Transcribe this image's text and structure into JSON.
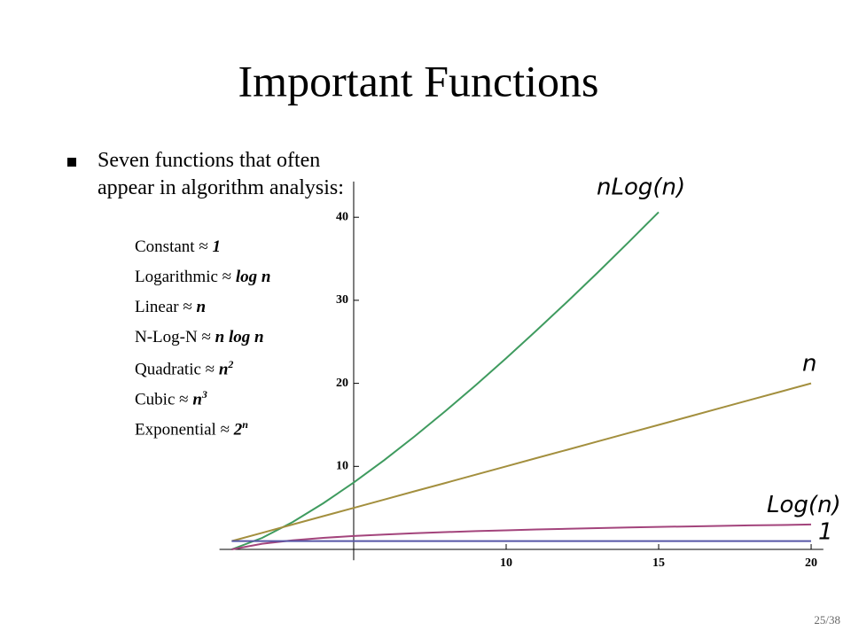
{
  "slide": {
    "title": "Important Functions",
    "bullet": "Seven functions that often appear in algorithm analysis:",
    "items": [
      {
        "name": "Constant",
        "symbol": "≈",
        "formula": "1"
      },
      {
        "name": "Logarithmic",
        "symbol": "≈",
        "formula": "log n"
      },
      {
        "name": "Linear",
        "symbol": "≈",
        "formula": "n"
      },
      {
        "name": "N-Log-N",
        "symbol": "≈",
        "formula": "n log n"
      },
      {
        "name": "Quadratic",
        "symbol": "≈",
        "formula": "n",
        "sup": "2"
      },
      {
        "name": "Cubic",
        "symbol": "≈",
        "formula": "n",
        "sup": "3"
      },
      {
        "name": "Exponential",
        "symbol": "≈",
        "formula": "2",
        "sup": "n"
      }
    ],
    "page": "25/38"
  },
  "chart_data": {
    "type": "line",
    "x": [
      1,
      2,
      3,
      4,
      5,
      6,
      7,
      8,
      9,
      10,
      11,
      12,
      13,
      14,
      15,
      16,
      17,
      18,
      19,
      20
    ],
    "series": [
      {
        "name": "nLog(n)",
        "color": "#3f9b5f",
        "values": [
          0,
          1.39,
          3.3,
          5.55,
          8.05,
          10.75,
          13.62,
          16.64,
          19.78,
          23.03,
          26.38,
          29.82,
          33.34,
          36.95,
          40.62,
          null,
          null,
          null,
          null,
          null
        ]
      },
      {
        "name": "n",
        "color": "#a38f3e",
        "values": [
          1,
          2,
          3,
          4,
          5,
          6,
          7,
          8,
          9,
          10,
          11,
          12,
          13,
          14,
          15,
          16,
          17,
          18,
          19,
          20
        ]
      },
      {
        "name": "Log(n)",
        "color": "#a3447c",
        "values": [
          0,
          0.69,
          1.1,
          1.39,
          1.61,
          1.79,
          1.95,
          2.08,
          2.2,
          2.3,
          2.4,
          2.48,
          2.56,
          2.64,
          2.71,
          2.77,
          2.83,
          2.89,
          2.94,
          3.0
        ]
      },
      {
        "name": "1",
        "color": "#5656a6",
        "values": [
          1,
          1,
          1,
          1,
          1,
          1,
          1,
          1,
          1,
          1,
          1,
          1,
          1,
          1,
          1,
          1,
          1,
          1,
          1,
          1
        ]
      }
    ],
    "xlim": [
      0.6,
      20.4
    ],
    "ylim": [
      -1.3,
      44.3
    ],
    "xticks": [
      10,
      15,
      20
    ],
    "yticks": [
      10,
      20,
      30,
      40
    ],
    "y_axis_position": 5
  }
}
